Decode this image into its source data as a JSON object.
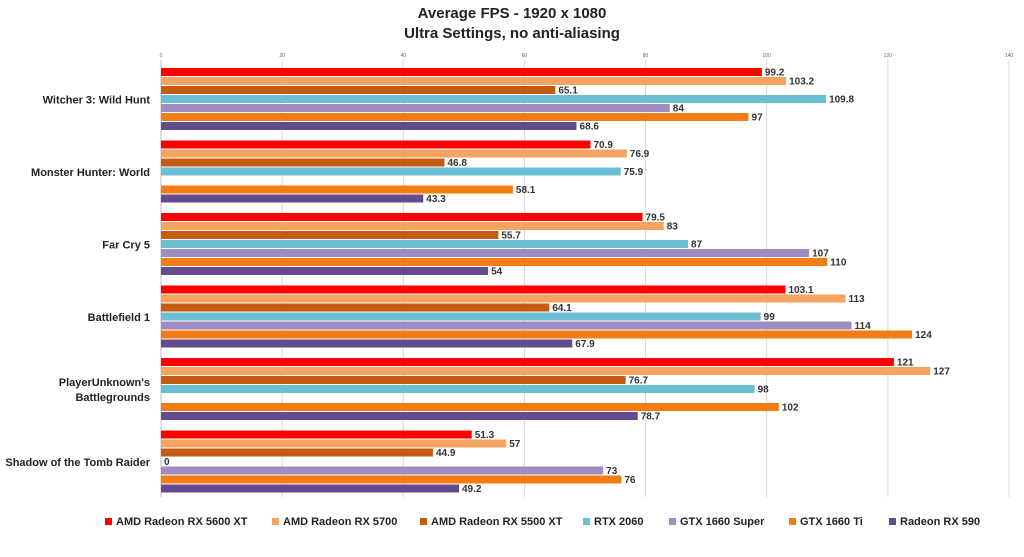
{
  "chart_data": {
    "type": "bar",
    "orientation": "horizontal",
    "title": "Average FPS - 1920 x 1080",
    "subtitle": "Ultra Settings, no anti-aliasing",
    "xlim": [
      0,
      140
    ],
    "x_ticks": [
      "0",
      "20",
      "40",
      "60",
      "80",
      "100",
      "120",
      "140"
    ],
    "grid": true,
    "legend_position": "bottom",
    "categories": [
      [
        "Witcher 3: Wild Hunt"
      ],
      [
        "Monster Hunter: World"
      ],
      [
        "Far Cry 5"
      ],
      [
        "Battlefield 1"
      ],
      [
        "PlayerUnknown's",
        "Battlegrounds"
      ],
      [
        "Shadow of the Tomb Raider"
      ]
    ],
    "series": [
      {
        "name": "AMD Radeon RX 5600 XT",
        "color": "#ff0000",
        "values": [
          99.2,
          70.9,
          79.5,
          103.1,
          121,
          51.3
        ],
        "labels": [
          "99.2",
          "70.9",
          "79.5",
          "103.1",
          "121",
          "51.3"
        ]
      },
      {
        "name": "AMD Radeon RX 5700",
        "color": "#f4a460",
        "values": [
          103.2,
          76.9,
          83,
          113,
          127,
          57
        ],
        "labels": [
          "103.2",
          "76.9",
          "83",
          "113",
          "127",
          "57"
        ]
      },
      {
        "name": "AMD Radeon RX 5500 XT",
        "color": "#c55a11",
        "values": [
          65.1,
          46.8,
          55.7,
          64.1,
          76.7,
          44.9
        ],
        "labels": [
          "65.1",
          "46.8",
          "55.7",
          "64.1",
          "76.7",
          "44.9"
        ]
      },
      {
        "name": "RTX 2060",
        "color": "#6cbfd3",
        "values": [
          109.8,
          75.9,
          87,
          99,
          98,
          0
        ],
        "labels": [
          "109.8",
          "75.9",
          "87",
          "99",
          "98",
          "0"
        ]
      },
      {
        "name": "GTX 1660 Super",
        "color": "#a08cc0",
        "values": [
          84,
          null,
          107,
          114,
          null,
          73
        ],
        "labels": [
          "84",
          null,
          "107",
          "114",
          null,
          "73"
        ]
      },
      {
        "name": "GTX 1660 Ti",
        "color": "#f47c14",
        "values": [
          97,
          58.1,
          110,
          124,
          102,
          76
        ],
        "labels": [
          "97",
          "58.1",
          "110",
          "124",
          "102",
          "76"
        ]
      },
      {
        "name": "Radeon RX 590",
        "color": "#634b8e",
        "values": [
          68.6,
          43.3,
          54,
          67.9,
          78.7,
          49.2
        ],
        "labels": [
          "68.6",
          "43.3",
          "54",
          "67.9",
          "78.7",
          "49.2"
        ]
      }
    ]
  }
}
